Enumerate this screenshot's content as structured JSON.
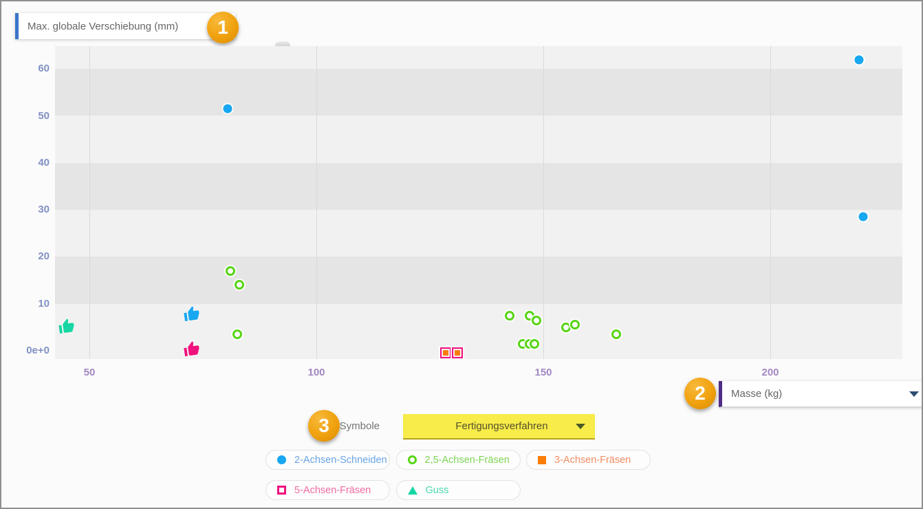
{
  "y_dropdown": {
    "label": "Max. globale Verschiebung (mm)"
  },
  "x_dropdown": {
    "label": "Masse (kg)"
  },
  "badges": {
    "one": "1",
    "two": "2",
    "three": "3"
  },
  "symbols": {
    "label": "Symbole",
    "dropdown_label": "Fertigungsverfahren"
  },
  "colors": {
    "badge_orange": "#f0a10e",
    "y_dropdown_accent": "#3b76c9",
    "x_dropdown_accent": "#4f2c87",
    "symbol_dropdown_yellow": "#f7ec49",
    "y_tick": "#8191c5",
    "x_tick": "#a287c2"
  },
  "legend": [
    {
      "label": "2-Achsen-Schneiden",
      "marker": "circle-filled",
      "color": "#18a7f0",
      "text_color": "#68a4e6"
    },
    {
      "label": "2,5-Achsen-Fräsen",
      "marker": "circle-open",
      "color": "#58d515",
      "text_color": "#7ed456"
    },
    {
      "label": "3-Achsen-Fräsen",
      "marker": "square-filled",
      "color": "#fa7d0a",
      "text_color": "#f08d64"
    },
    {
      "label": "5-Achsen-Fräsen",
      "marker": "square-open",
      "color": "#f0117e",
      "text_color": "#f06ba2"
    },
    {
      "label": "Guss",
      "marker": "triangle-filled",
      "color": "#16d6a3",
      "text_color": "#4ad9b0"
    }
  ],
  "chart_data": {
    "type": "scatter",
    "xlabel": "Masse (kg)",
    "ylabel": "Max. globale Verschiebung (mm)",
    "x_ticks": [
      {
        "label": "50",
        "value": 50
      },
      {
        "label": "100",
        "value": 100
      },
      {
        "label": "150",
        "value": 150
      },
      {
        "label": "200",
        "value": 200
      }
    ],
    "y_ticks": [
      {
        "label": "0e+0",
        "value": 0
      },
      {
        "label": "10",
        "value": 10
      },
      {
        "label": "20",
        "value": 20
      },
      {
        "label": "30",
        "value": 30
      },
      {
        "label": "40",
        "value": 40
      },
      {
        "label": "50",
        "value": 50
      },
      {
        "label": "60",
        "value": 60
      }
    ],
    "xlim": [
      42,
      229
    ],
    "ylim": [
      -2,
      65
    ],
    "grid": "vertical-lines-and-horizontal-bands",
    "bands_dark": [
      [
        10,
        20
      ],
      [
        30,
        40
      ],
      [
        50,
        60
      ]
    ],
    "legend_position": "bottom",
    "series": [
      {
        "name": "2-Achsen-Schneiden",
        "marker": "circle-filled",
        "color": "#18a7f0",
        "points": [
          [
            80.5,
            51.5
          ],
          [
            219.5,
            62
          ],
          [
            220.5,
            28.5
          ]
        ],
        "thumb_points": [
          [
            72.5,
            7.5
          ]
        ]
      },
      {
        "name": "2,5-Achsen-Fräsen",
        "marker": "circle-open",
        "color": "#58d515",
        "points": [
          [
            81,
            17
          ],
          [
            83,
            14
          ],
          [
            82.5,
            3.5
          ],
          [
            142.5,
            7.5
          ],
          [
            147,
            7.5
          ],
          [
            148.5,
            6.5
          ],
          [
            145.5,
            1.5
          ],
          [
            147,
            1.5
          ],
          [
            148,
            1.5
          ],
          [
            155,
            5
          ],
          [
            157,
            5.5
          ],
          [
            166,
            3.5
          ]
        ],
        "thumb_points": []
      },
      {
        "name": "3-Achsen-Fräsen",
        "marker": "square-filled",
        "color": "#fa7d0a",
        "points": [
          [
            128.5,
            -0.5
          ],
          [
            131,
            -0.5
          ]
        ],
        "thumb_points": []
      },
      {
        "name": "5-Achsen-Fräsen",
        "marker": "square-open",
        "color": "#f0117e",
        "points": [
          [
            128.5,
            -0.5
          ],
          [
            131,
            -0.5
          ]
        ],
        "thumb_points": [
          [
            72.5,
            0
          ]
        ]
      },
      {
        "name": "Guss",
        "marker": "triangle-filled",
        "color": "#16d6a3",
        "points": [],
        "thumb_points": [
          [
            45,
            4.8
          ]
        ]
      }
    ],
    "top_edge_artifact_x": 92.5
  }
}
